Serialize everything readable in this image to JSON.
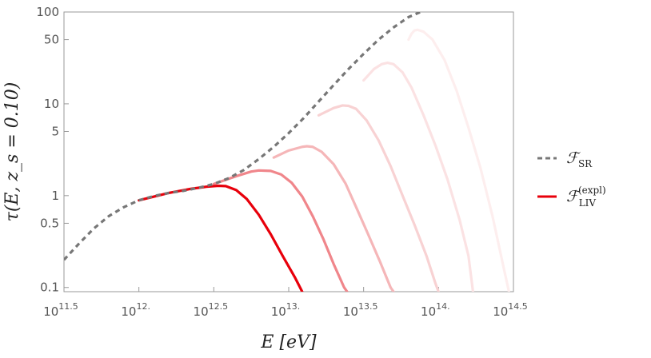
{
  "chart_data": {
    "type": "line",
    "xlabel": "E [eV]",
    "ylabel": "τ(E, z_s = 0.10)",
    "x_scale": "log",
    "y_scale": "log",
    "xlim": [
      316227766017,
      316227766017000
    ],
    "ylim": [
      0.09,
      100
    ],
    "x_ticks": [
      {
        "value": 316227766017,
        "label": "10",
        "exp": "11.5"
      },
      {
        "value": 1000000000000,
        "label": "10",
        "exp": "12."
      },
      {
        "value": 3162277660168,
        "label": "10",
        "exp": "12.5"
      },
      {
        "value": 10000000000000,
        "label": "10",
        "exp": "13."
      },
      {
        "value": 31622776601684,
        "label": "10",
        "exp": "13.5"
      },
      {
        "value": 100000000000000,
        "label": "10",
        "exp": "14."
      },
      {
        "value": 316227766016838,
        "label": "10",
        "exp": "14.5"
      }
    ],
    "y_ticks": [
      {
        "value": 0.1,
        "label": "0.1"
      },
      {
        "value": 0.5,
        "label": "0.5"
      },
      {
        "value": 1,
        "label": "1"
      },
      {
        "value": 5,
        "label": "5"
      },
      {
        "value": 10,
        "label": "10"
      },
      {
        "value": 50,
        "label": "50"
      },
      {
        "value": 100,
        "label": "100"
      }
    ],
    "legend": {
      "placement": "right",
      "entries": [
        {
          "label_main": "ℱ",
          "label_sub": "SR",
          "label_sup": "",
          "style": "dashed",
          "color": "#777777"
        },
        {
          "label_main": "ℱ",
          "label_sub": "LIV",
          "label_sup": "(expl)",
          "style": "solid",
          "color": "#e8000b"
        }
      ]
    },
    "series": [
      {
        "name": "ℱSR",
        "style": "dashed",
        "color": "#777777",
        "x": [
          316227766017,
          398107170553,
          501187233627,
          630957344480,
          794328234724,
          1000000000000,
          1258925411794,
          1584893192461,
          1995262314969,
          2511886431510,
          3162277660168,
          3981071705535,
          5011872336273,
          6309573444802,
          7943282347243,
          10000000000000,
          12589254117942,
          15848931924611,
          19952623149689,
          25118864315096,
          31622776601684,
          39810717055350,
          50118723362727,
          63095734448019,
          75857757502918
        ],
        "y": [
          0.2,
          0.3,
          0.44,
          0.6,
          0.75,
          0.89,
          0.99,
          1.07,
          1.13,
          1.22,
          1.34,
          1.55,
          1.9,
          2.5,
          3.4,
          4.8,
          7.0,
          10.6,
          16.0,
          24.0,
          35.0,
          50.0,
          68.0,
          88.0,
          100.0
        ]
      },
      {
        "name": "ℱLIV (expl) 1",
        "style": "solid",
        "color": "#e8000b",
        "x": [
          1000000000000,
          1584893192461,
          2238721138568,
          2818382931264,
          3388441561392,
          3801893963206,
          4466835921510,
          5248074602498,
          6309573444802,
          7585775750292,
          9120108393559,
          10964781961432,
          12302687708124
        ],
        "y": [
          0.89,
          1.07,
          1.19,
          1.25,
          1.28,
          1.27,
          1.15,
          0.92,
          0.62,
          0.38,
          0.22,
          0.13,
          0.09
        ]
      },
      {
        "name": "ℱLIV (expl) 2",
        "style": "solid",
        "color": "#f0868b",
        "x": [
          3162277660168,
          4466835921510,
          5623413251903,
          6309573444802,
          7585775750292,
          8912509381337,
          10471285480509,
          12302687708124,
          14454397707459,
          16982436524617,
          19952623149689,
          23442288153199,
          24547089156850
        ],
        "y": [
          1.34,
          1.63,
          1.83,
          1.88,
          1.86,
          1.7,
          1.38,
          0.98,
          0.6,
          0.34,
          0.18,
          0.1,
          0.09
        ]
      },
      {
        "name": "ℱLIV (expl) 3",
        "style": "solid",
        "color": "#f5b6b8",
        "x": [
          7943282347243,
          10000000000000,
          12302687708124,
          13182567385564,
          14454397707459,
          16595869074376,
          19952623149689,
          23988329190195,
          28183829312645,
          33884415613920,
          40738027780411,
          47863009232264,
          50118723362727
        ],
        "y": [
          2.6,
          3.1,
          3.4,
          3.45,
          3.4,
          3.0,
          2.2,
          1.35,
          0.75,
          0.38,
          0.19,
          0.1,
          0.09
        ]
      },
      {
        "name": "ℱLIV (expl) 4",
        "style": "solid",
        "color": "#f8d2d3",
        "x": [
          15848931924611,
          19952623149689,
          22908676527678,
          25118864315096,
          28183829312645,
          33113112148259,
          39810717055350,
          47863009232264,
          57543993733716,
          69183097091893,
          83176377110267,
          95499258602144,
          100000000000000
        ],
        "y": [
          7.5,
          9.0,
          9.6,
          9.5,
          8.8,
          6.6,
          4.0,
          2.1,
          1.0,
          0.48,
          0.22,
          0.11,
          0.09
        ]
      },
      {
        "name": "ℱLIV (expl) 5",
        "style": "solid",
        "color": "#fbe2e3",
        "x": [
          31622776601684,
          37153522909717,
          41686938347034,
          45708818961487,
          50118723362727,
          57543993733716,
          66069344800759,
          79432823472428,
          95499258602144,
          114815362149688,
          138038426460289,
          158489319246111,
          169824365246174
        ],
        "y": [
          18.0,
          24.0,
          27.0,
          28.0,
          27.0,
          22.0,
          15.0,
          7.5,
          3.5,
          1.5,
          0.55,
          0.22,
          0.09
        ]
      },
      {
        "name": "ℱLIV (expl) 6",
        "style": "solid",
        "color": "#fdeeee",
        "x": [
          63095734448019,
          66069344800759,
          69183097091893,
          72443596007499,
          79432823472428,
          91201083935591,
          109647819614318,
          131825673855641,
          158489319246111,
          190546071796325,
          229086765276777,
          275422870333816,
          295120922666639
        ],
        "y": [
          50.0,
          58.0,
          63.0,
          64.0,
          61.0,
          50.0,
          30.0,
          14.0,
          5.5,
          2.0,
          0.6,
          0.15,
          0.09
        ]
      }
    ]
  }
}
